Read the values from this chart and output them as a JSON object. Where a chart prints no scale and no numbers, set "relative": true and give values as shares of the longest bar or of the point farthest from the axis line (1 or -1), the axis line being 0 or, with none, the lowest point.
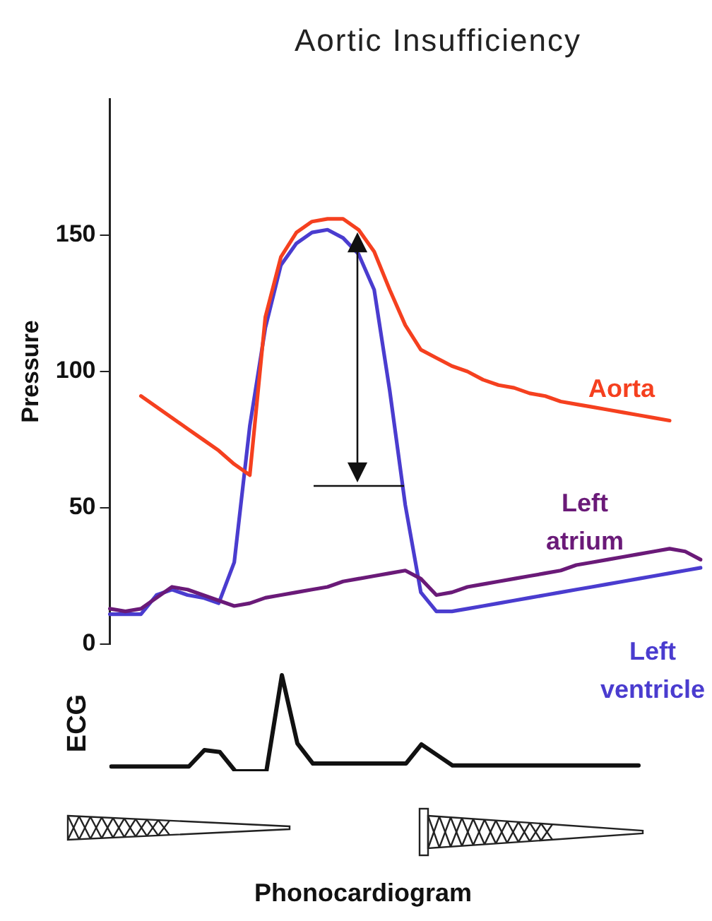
{
  "chart_data": [
    {
      "type": "line",
      "title": "Aortic Insufficiency",
      "ylabel": "Pressure",
      "categories": [
        null,
        null,
        null,
        null,
        null,
        null,
        null,
        null,
        null,
        null,
        null,
        null,
        null,
        null,
        null,
        null,
        null,
        null,
        null,
        null,
        null,
        null,
        null,
        null,
        null,
        null,
        null,
        null,
        null,
        null,
        null,
        null,
        null,
        null,
        null,
        null,
        null,
        null,
        null
      ],
      "series": [
        {
          "name": "Aorta",
          "color": "#f5401f",
          "values": [
            null,
            null,
            91,
            87,
            83,
            79,
            75,
            71,
            66,
            62,
            120,
            142,
            151,
            155,
            156,
            156,
            152,
            144,
            130,
            117,
            108,
            105,
            102,
            100,
            97,
            95,
            94,
            92,
            91,
            89,
            88,
            87,
            86,
            85,
            84,
            83,
            82,
            null,
            null
          ]
        },
        {
          "name": "Left atrium",
          "color": "#6a1a78",
          "values": [
            13,
            12,
            13,
            17,
            21,
            20,
            18,
            16,
            14,
            15,
            17,
            18,
            19,
            20,
            21,
            23,
            24,
            25,
            26,
            27,
            24,
            18,
            19,
            21,
            22,
            23,
            24,
            25,
            26,
            27,
            29,
            30,
            31,
            32,
            33,
            34,
            35,
            34,
            31
          ]
        },
        {
          "name": "Left ventricle",
          "color": "#4a3ccf",
          "values": [
            11,
            11,
            11,
            18,
            20,
            18,
            17,
            15,
            30,
            80,
            116,
            139,
            147,
            151,
            152,
            149,
            143,
            130,
            93,
            51,
            19,
            12,
            12,
            13,
            14,
            15,
            16,
            17,
            18,
            19,
            20,
            21,
            22,
            23,
            24,
            25,
            26,
            27,
            28
          ]
        }
      ],
      "ylim": [
        0,
        200
      ],
      "yticks": [
        0,
        50,
        100,
        150
      ],
      "grid": false,
      "legend": false,
      "tick_labels": "y",
      "marker": "none",
      "line_style": "solid",
      "annotations": [
        "Phonocardiogram"
      ]
    },
    {
      "type": "line",
      "ylabel": "ECG",
      "relative": true,
      "legend": false,
      "marker": "none",
      "line_style": "solid",
      "tick_labels": false,
      "categories": [
        null,
        null,
        null,
        null,
        null,
        null,
        null,
        null,
        null,
        null,
        null,
        null,
        null,
        null,
        null,
        null,
        null,
        null,
        null,
        null,
        null,
        null,
        null,
        null,
        null,
        null,
        null,
        null,
        null,
        null,
        null,
        null,
        null,
        null,
        null
      ],
      "series": [
        {
          "color": "#111111",
          "values": [
            0.05,
            0.05,
            0.05,
            0.05,
            0.05,
            0.05,
            0.22,
            0.2,
            0,
            0,
            0,
            1,
            0.29,
            0.08,
            0.08,
            0.08,
            0.08,
            0.08,
            0.08,
            0.08,
            0.28,
            0.17,
            0.06,
            0.06,
            0.06,
            0.06,
            0.06,
            0.06,
            0.06,
            0.06,
            0.06,
            0.06,
            0.06,
            0.06,
            0.06
          ]
        }
      ]
    }
  ]
}
